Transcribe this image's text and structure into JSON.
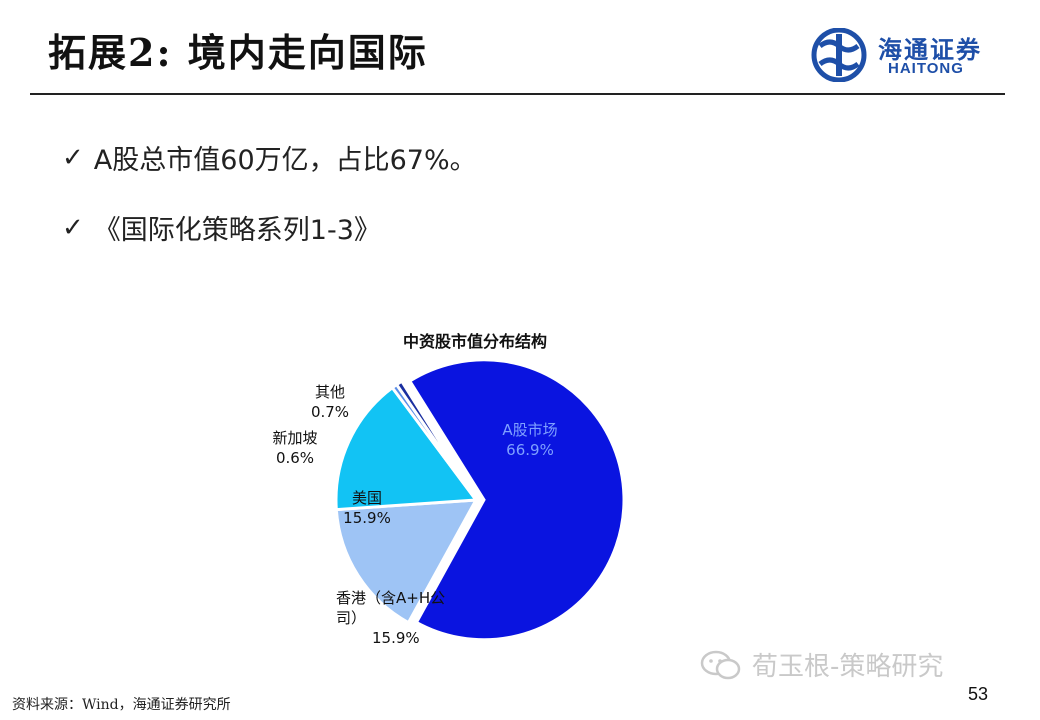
{
  "header": {
    "title": "拓展2: 境内走向国际",
    "logo": {
      "name_cn": "海通证券",
      "name_en": "HAITONG",
      "icon": "haitong-logo-icon"
    }
  },
  "bullets": [
    {
      "icon": "check-icon",
      "text": "A股总市值60万亿，占比67%。"
    },
    {
      "icon": "check-icon",
      "text": "《国际化策略系列1-3》"
    }
  ],
  "chart_data": {
    "type": "pie",
    "title": "中资股市值分布结构",
    "slices": [
      {
        "name": "A股市场",
        "value": 66.9,
        "label": "66.9%",
        "color": "#0a14e0"
      },
      {
        "name": "香港（含A+H公司）",
        "value": 15.9,
        "label": "15.9%",
        "color": "#9ec4f5"
      },
      {
        "name": "美国",
        "value": 15.9,
        "label": "15.9%",
        "color": "#12c3f4"
      },
      {
        "name": "新加坡",
        "value": 0.6,
        "label": "0.6%",
        "color": "#5a8de8"
      },
      {
        "name": "其他",
        "value": 0.7,
        "label": "0.7%",
        "color": "#1a2fa0"
      }
    ]
  },
  "footer": {
    "source": "资料来源：Wind，海通证券研究所",
    "watermark": "荀玉根-策略研究",
    "page_number": "53"
  }
}
